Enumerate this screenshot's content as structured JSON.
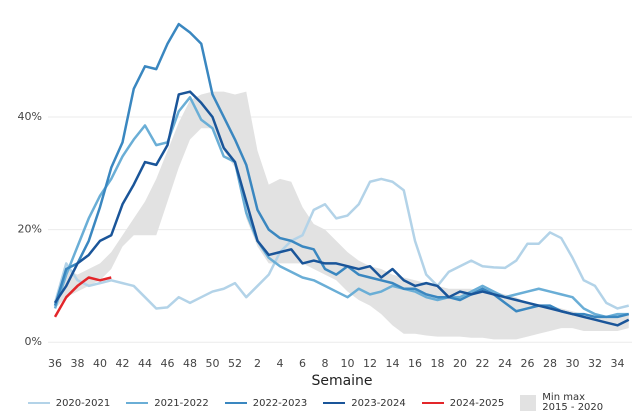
{
  "chart_data": {
    "type": "line",
    "x_label": "Semaine",
    "categories": [
      "36",
      null,
      "38",
      null,
      "40",
      null,
      "42",
      null,
      "44",
      null,
      "46",
      null,
      "48",
      null,
      "50",
      null,
      "52",
      null,
      "2",
      null,
      "4",
      null,
      "6",
      null,
      "8",
      null,
      "10",
      null,
      "12",
      null,
      "14",
      null,
      "16",
      null,
      "18",
      null,
      "20",
      null,
      "22",
      null,
      "24",
      null,
      "26",
      null,
      "28",
      null,
      "30",
      null,
      "32",
      null,
      "34",
      null
    ],
    "ylim": [
      -1.2,
      59
    ],
    "yticks": [
      {
        "value": 0,
        "label": "0%"
      },
      {
        "value": 20,
        "label": "20%"
      },
      {
        "value": 40,
        "label": "40%"
      }
    ],
    "grid": true,
    "band": {
      "name": "Min max 2015 - 2020",
      "color": "#e2e2e2",
      "lower": [
        6,
        8,
        9,
        10,
        11,
        13,
        17,
        19,
        19,
        19,
        25,
        31,
        36,
        38,
        38,
        34,
        31,
        22,
        17,
        14,
        14,
        14,
        14,
        13,
        12,
        11,
        9,
        7.5,
        6.5,
        5,
        3,
        1.5,
        1.5,
        1.2,
        1,
        1,
        1,
        0.8,
        0.8,
        0.5,
        0.5,
        0.5,
        1,
        1.5,
        2,
        2.5,
        2.5,
        2,
        2,
        2,
        2,
        2.5
      ],
      "upper": [
        7,
        13,
        12,
        13,
        14,
        16,
        19,
        22,
        25,
        29,
        34,
        39,
        43,
        44,
        44.5,
        44.5,
        44,
        44.5,
        34,
        28,
        29,
        28.5,
        24,
        21,
        20,
        18,
        16,
        14.5,
        13.5,
        13,
        12,
        11.5,
        11,
        10.5,
        10,
        9.5,
        9.5,
        9.5,
        9,
        9,
        8.5,
        8,
        7,
        6.5,
        6.5,
        6,
        5.5,
        5,
        5,
        4.5,
        4.5,
        5
      ]
    },
    "series": [
      {
        "name": "2020-2021",
        "color": "#b3d3e8",
        "values": [
          7,
          14,
          11,
          10,
          10.5,
          11,
          10.5,
          10,
          8,
          6,
          6.2,
          8,
          7,
          8,
          9,
          9.5,
          10.5,
          8,
          10,
          12,
          16,
          18,
          19,
          23.5,
          24.5,
          22,
          22.5,
          24.5,
          28.5,
          29,
          28.5,
          27,
          18,
          12,
          10,
          12.5,
          13.5,
          14.5,
          13.5,
          13.3,
          13.2,
          14.5,
          17.5,
          17.5,
          19.5,
          18.5,
          15,
          11,
          10,
          7,
          6,
          6.5
        ]
      },
      {
        "name": "2021-2022",
        "color": "#6aaed6",
        "values": [
          6,
          12,
          17,
          22,
          26,
          29,
          33,
          36,
          38.5,
          35,
          35.5,
          41,
          43.5,
          39.5,
          38,
          33,
          32,
          23,
          18,
          15,
          13.5,
          12.5,
          11.5,
          11,
          10,
          9,
          8,
          9.5,
          8.5,
          9,
          10,
          9.5,
          9,
          8,
          7.5,
          8,
          8,
          9,
          10,
          9,
          8,
          8.5,
          9,
          9.5,
          9,
          8.5,
          8,
          6,
          5,
          4.5,
          5,
          5
        ]
      },
      {
        "name": "2022-2023",
        "color": "#3a87c0",
        "values": [
          6.5,
          13,
          14,
          18,
          24,
          31,
          35.5,
          45,
          49,
          48.5,
          53,
          56.5,
          55,
          53,
          44,
          40,
          36,
          31.5,
          23.5,
          20,
          18.5,
          18,
          17,
          16.5,
          13,
          12,
          13.5,
          12,
          11.5,
          11,
          10.5,
          9.5,
          9.5,
          8.5,
          8,
          8,
          7.5,
          8.5,
          9.5,
          8.5,
          7,
          5.5,
          6,
          6.5,
          6.5,
          5.5,
          5,
          5,
          4.5,
          4.5,
          4.5,
          5
        ]
      },
      {
        "name": "2023-2024",
        "color": "#1a5599",
        "values": [
          7,
          10,
          14,
          15.5,
          18,
          19,
          24.5,
          28,
          32,
          31.5,
          35,
          44,
          44.5,
          42.5,
          40,
          34.5,
          32,
          25,
          18,
          15.5,
          16,
          16.5,
          14,
          14.5,
          14,
          14,
          13.5,
          13,
          13.5,
          11.5,
          13,
          11,
          10,
          10.5,
          10,
          8,
          9,
          8.5,
          9,
          8.5,
          8,
          7.5,
          7,
          6.5,
          6,
          5.5,
          5,
          4.5,
          4,
          3.5,
          3,
          4
        ]
      },
      {
        "name": "2024-2025",
        "color": "#e3262a",
        "values": [
          4.5,
          8,
          10,
          11.5,
          11,
          11.5,
          null,
          null,
          null,
          null,
          null,
          null,
          null,
          null,
          null,
          null,
          null,
          null,
          null,
          null,
          null,
          null,
          null,
          null,
          null,
          null,
          null,
          null,
          null,
          null,
          null,
          null,
          null,
          null,
          null,
          null,
          null,
          null,
          null,
          null,
          null,
          null,
          null,
          null,
          null,
          null,
          null,
          null,
          null,
          null,
          null,
          null
        ]
      }
    ]
  }
}
